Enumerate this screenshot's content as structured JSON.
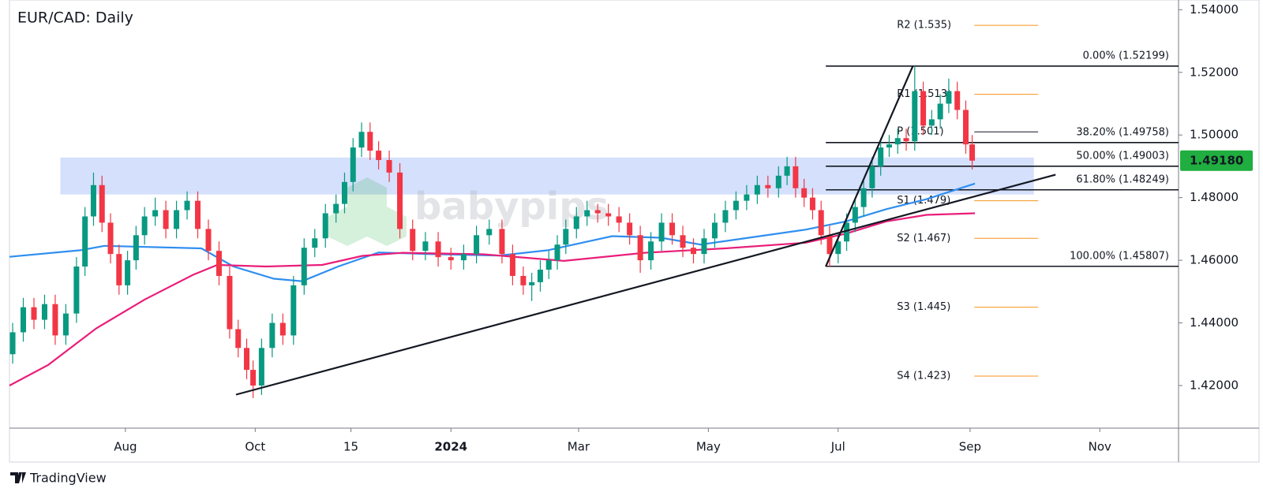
{
  "chart_data": {
    "type": "candlestick",
    "title": "EUR/CAD: Daily",
    "watermark": "babypips",
    "branding": "TradingView",
    "up_color": "#089981",
    "down_color": "#f23645",
    "xlim": [
      -23.5,
      526
    ],
    "ylim": [
      1.4064,
      1.5431
    ],
    "xticks": [
      {
        "value": 31,
        "label": "Aug"
      },
      {
        "value": 92,
        "label": "Oct"
      },
      {
        "value": 137,
        "label": "15"
      },
      {
        "value": 184,
        "label": "2024"
      },
      {
        "value": 244,
        "label": "Mar"
      },
      {
        "value": 305,
        "label": "May"
      },
      {
        "value": 366,
        "label": "Jul"
      },
      {
        "value": 428,
        "label": "Sep"
      },
      {
        "value": 489,
        "label": "Nov"
      }
    ],
    "yticks": [
      {
        "value": 1.42,
        "label": "1.42000"
      },
      {
        "value": 1.44,
        "label": "1.44000"
      },
      {
        "value": 1.46,
        "label": "1.46000"
      },
      {
        "value": 1.48,
        "label": "1.48000"
      },
      {
        "value": 1.5,
        "label": "1.50000"
      },
      {
        "value": 1.52,
        "label": "1.52000"
      },
      {
        "value": 1.54,
        "label": "1.54000"
      }
    ],
    "x": [
      -22,
      -17,
      -12,
      -7,
      -2,
      3,
      8,
      12,
      16,
      20,
      24,
      28,
      32,
      36,
      40,
      45,
      50,
      55,
      60,
      65,
      70,
      75,
      80,
      84,
      88,
      91,
      95,
      100,
      105,
      110,
      115,
      120,
      125,
      130,
      134,
      138,
      142,
      146,
      150,
      155,
      160,
      166,
      172,
      178,
      184,
      190,
      196,
      202,
      208,
      213,
      218,
      222,
      226,
      230,
      234,
      238,
      243,
      248,
      253,
      258,
      263,
      268,
      273,
      278,
      283,
      288,
      293,
      298,
      303,
      308,
      313,
      318,
      323,
      328,
      333,
      338,
      342,
      346,
      350,
      354,
      358,
      362,
      366,
      370,
      374,
      378,
      382,
      386,
      390,
      394,
      398,
      402,
      406,
      410,
      414,
      418,
      422,
      426,
      429
    ],
    "open": [
      1.43,
      1.437,
      1.445,
      1.441,
      1.446,
      1.436,
      1.443,
      1.458,
      1.474,
      1.484,
      1.472,
      1.462,
      1.452,
      1.46,
      1.468,
      1.474,
      1.476,
      1.47,
      1.476,
      1.479,
      1.47,
      1.463,
      1.455,
      1.438,
      1.432,
      1.425,
      1.42,
      1.432,
      1.44,
      1.436,
      1.452,
      1.464,
      1.467,
      1.475,
      1.478,
      1.485,
      1.496,
      1.501,
      1.495,
      1.492,
      1.488,
      1.47,
      1.463,
      1.466,
      1.461,
      1.46,
      1.462,
      1.468,
      1.47,
      1.462,
      1.455,
      1.452,
      1.453,
      1.457,
      1.46,
      1.465,
      1.47,
      1.474,
      1.476,
      1.475,
      1.474,
      1.472,
      1.468,
      1.46,
      1.466,
      1.472,
      1.468,
      1.464,
      1.462,
      1.467,
      1.472,
      1.476,
      1.479,
      1.481,
      1.484,
      1.483,
      1.487,
      1.49,
      1.483,
      1.48,
      1.476,
      1.468,
      1.462,
      1.466,
      1.472,
      1.477,
      1.483,
      1.49,
      1.496,
      1.497,
      1.499,
      1.498,
      1.514,
      1.503,
      1.505,
      1.51,
      1.514,
      1.508,
      1.497
    ],
    "high": [
      1.44,
      1.448,
      1.448,
      1.449,
      1.449,
      1.446,
      1.461,
      1.477,
      1.488,
      1.487,
      1.475,
      1.465,
      1.463,
      1.471,
      1.477,
      1.48,
      1.479,
      1.479,
      1.482,
      1.482,
      1.473,
      1.466,
      1.458,
      1.441,
      1.435,
      1.428,
      1.435,
      1.443,
      1.443,
      1.455,
      1.467,
      1.47,
      1.478,
      1.481,
      1.488,
      1.499,
      1.504,
      1.504,
      1.498,
      1.495,
      1.491,
      1.473,
      1.469,
      1.469,
      1.464,
      1.465,
      1.471,
      1.473,
      1.473,
      1.465,
      1.458,
      1.456,
      1.46,
      1.463,
      1.468,
      1.473,
      1.477,
      1.479,
      1.478,
      1.478,
      1.477,
      1.475,
      1.471,
      1.469,
      1.475,
      1.475,
      1.471,
      1.467,
      1.47,
      1.475,
      1.479,
      1.482,
      1.484,
      1.487,
      1.487,
      1.49,
      1.493,
      1.493,
      1.486,
      1.483,
      1.479,
      1.471,
      1.469,
      1.475,
      1.48,
      1.486,
      1.493,
      1.499,
      1.5,
      1.502,
      1.502,
      1.522,
      1.517,
      1.508,
      1.513,
      1.518,
      1.517,
      1.511,
      1.5
    ],
    "low": [
      1.427,
      1.434,
      1.438,
      1.438,
      1.433,
      1.433,
      1.44,
      1.455,
      1.471,
      1.469,
      1.459,
      1.449,
      1.449,
      1.457,
      1.465,
      1.471,
      1.467,
      1.467,
      1.473,
      1.467,
      1.46,
      1.452,
      1.435,
      1.429,
      1.422,
      1.416,
      1.417,
      1.429,
      1.433,
      1.433,
      1.449,
      1.461,
      1.464,
      1.472,
      1.475,
      1.482,
      1.493,
      1.492,
      1.489,
      1.485,
      1.467,
      1.46,
      1.46,
      1.458,
      1.457,
      1.457,
      1.459,
      1.465,
      1.459,
      1.452,
      1.449,
      1.447,
      1.45,
      1.454,
      1.457,
      1.462,
      1.467,
      1.471,
      1.472,
      1.471,
      1.469,
      1.465,
      1.456,
      1.457,
      1.463,
      1.465,
      1.461,
      1.459,
      1.459,
      1.464,
      1.469,
      1.473,
      1.476,
      1.478,
      1.48,
      1.48,
      1.484,
      1.48,
      1.477,
      1.473,
      1.465,
      1.458,
      1.459,
      1.463,
      1.469,
      1.474,
      1.48,
      1.487,
      1.493,
      1.494,
      1.495,
      1.495,
      1.5,
      1.5,
      1.502,
      1.507,
      1.505,
      1.494,
      1.489
    ],
    "close": [
      1.437,
      1.445,
      1.441,
      1.446,
      1.436,
      1.443,
      1.458,
      1.474,
      1.484,
      1.472,
      1.462,
      1.452,
      1.46,
      1.468,
      1.474,
      1.476,
      1.47,
      1.476,
      1.479,
      1.47,
      1.463,
      1.455,
      1.438,
      1.432,
      1.425,
      1.42,
      1.432,
      1.44,
      1.436,
      1.452,
      1.464,
      1.467,
      1.475,
      1.478,
      1.485,
      1.496,
      1.501,
      1.495,
      1.492,
      1.488,
      1.47,
      1.463,
      1.466,
      1.461,
      1.46,
      1.462,
      1.468,
      1.47,
      1.462,
      1.455,
      1.452,
      1.453,
      1.457,
      1.46,
      1.465,
      1.47,
      1.474,
      1.476,
      1.475,
      1.474,
      1.472,
      1.468,
      1.46,
      1.466,
      1.472,
      1.468,
      1.464,
      1.462,
      1.467,
      1.472,
      1.476,
      1.479,
      1.481,
      1.484,
      1.483,
      1.487,
      1.49,
      1.483,
      1.48,
      1.476,
      1.468,
      1.462,
      1.466,
      1.472,
      1.477,
      1.483,
      1.49,
      1.496,
      1.497,
      1.499,
      1.498,
      1.514,
      1.503,
      1.505,
      1.51,
      1.514,
      1.508,
      1.497,
      1.4918
    ],
    "moving_averages": [
      {
        "color": "#2f8ef0",
        "x": [
          -23.5,
          9.8,
          21.2,
          66.7,
          81.8,
          100.8,
          114,
          131,
          150,
          172.7,
          206.8,
          229.5,
          259.8,
          282.6,
          301.5,
          324,
          350.8,
          369.7,
          388.6,
          407.6,
          430.3
        ],
        "values": [
          1.4611,
          1.4632,
          1.4646,
          1.4638,
          1.458,
          1.4541,
          1.4533,
          1.458,
          1.4625,
          1.462,
          1.4615,
          1.4632,
          1.4677,
          1.4672,
          1.465,
          1.4672,
          1.4698,
          1.4724,
          1.4763,
          1.4795,
          1.4845
        ]
      },
      {
        "color": "#e91e7a",
        "x": [
          -23.5,
          -5.3,
          17.4,
          40.2,
          62.9,
          74.2,
          97,
          123.5,
          142.4,
          161.4,
          199.2,
          237.1,
          275,
          312.9,
          350.8,
          369.7,
          388.6,
          407.6,
          430.3
        ],
        "values": [
          1.42,
          1.4266,
          1.4383,
          1.4475,
          1.4554,
          1.4585,
          1.458,
          1.4585,
          1.4614,
          1.4624,
          1.4619,
          1.4598,
          1.4624,
          1.4638,
          1.4656,
          1.4685,
          1.4724,
          1.4745,
          1.475
        ]
      }
    ],
    "trendlines": [
      {
        "color": "#131722",
        "x": [
          83,
          468.2
        ],
        "values": [
          1.4171,
          1.4873
        ]
      },
      {
        "color": "#131722",
        "x": [
          360.2,
          401.1
        ],
        "values": [
          1.458,
          1.522
        ]
      }
    ],
    "zone": {
      "color": "#c9d8fb",
      "x": [
        0.4,
        458
      ],
      "values": [
        1.481,
        1.4928
      ]
    },
    "fibonacci": {
      "color": "#131722",
      "x_start": 360.2,
      "levels": [
        {
          "value": 1.52199,
          "label": "0.00% (1.52199)"
        },
        {
          "value": 1.49758,
          "label": "38.20% (1.49758)"
        },
        {
          "value": 1.49003,
          "label": "50.00% (1.49003)"
        },
        {
          "value": 1.48249,
          "label": "61.80% (1.48249)"
        },
        {
          "value": 1.45807,
          "label": "100.00% (1.45807)"
        }
      ]
    },
    "pivots": {
      "x": [
        430,
        460
      ],
      "levels": [
        {
          "value": 1.535,
          "label": "R2 (1.535)",
          "color": "#f7931a"
        },
        {
          "value": 1.513,
          "label": "R1 (1.513)",
          "color": "#f7931a"
        },
        {
          "value": 1.501,
          "label": "P (1.501)",
          "color": "#131722"
        },
        {
          "value": 1.479,
          "label": "S1 (1.479)",
          "color": "#f7931a"
        },
        {
          "value": 1.467,
          "label": "S2 (1.467)",
          "color": "#f7931a"
        },
        {
          "value": 1.445,
          "label": "S3 (1.445)",
          "color": "#f7931a"
        },
        {
          "value": 1.423,
          "label": "S4 (1.423)",
          "color": "#f7931a"
        }
      ]
    },
    "last_price": {
      "value": 1.4918,
      "label": "1.49180",
      "color": "#1fae3f"
    }
  }
}
